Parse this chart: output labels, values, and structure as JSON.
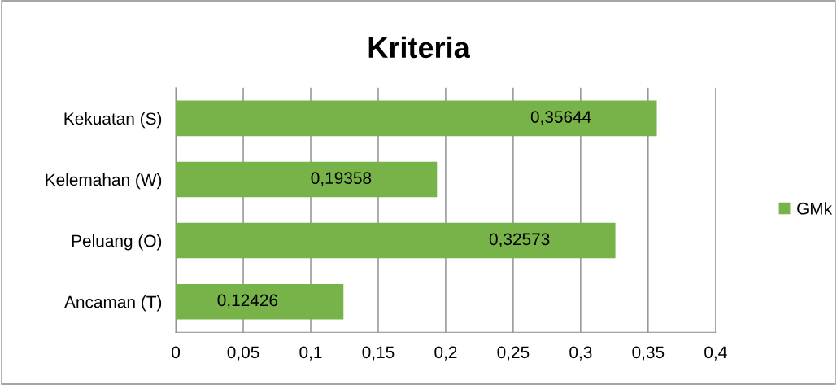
{
  "chart_data": {
    "type": "bar",
    "orientation": "horizontal",
    "title": "Kriteria",
    "categories": [
      "Kekuatan (S)",
      "Kelemahan (W)",
      "Peluang (O)",
      "Ancaman (T)"
    ],
    "series": [
      {
        "name": "GMk",
        "color": "#77b348",
        "values": [
          0.35644,
          0.19358,
          0.32573,
          0.12426
        ],
        "value_labels": [
          "0,35644",
          "0,19358",
          "0,32573",
          "0,12426"
        ]
      }
    ],
    "xlim": [
      0,
      0.4
    ],
    "xticks": [
      0,
      {
        "value": 0.05,
        "label": "0,05"
      },
      {
        "value": 0.1,
        "label": "0,1"
      },
      {
        "value": 0.15,
        "label": "0,15"
      },
      {
        "value": 0.2,
        "label": "0,2"
      },
      {
        "value": 0.25,
        "label": "0,25"
      },
      {
        "value": 0.3,
        "label": "0,3"
      },
      {
        "value": 0.35,
        "label": "0,35"
      },
      {
        "value": 0.4,
        "label": "0,4"
      }
    ],
    "grid": "x",
    "legend": "right"
  }
}
